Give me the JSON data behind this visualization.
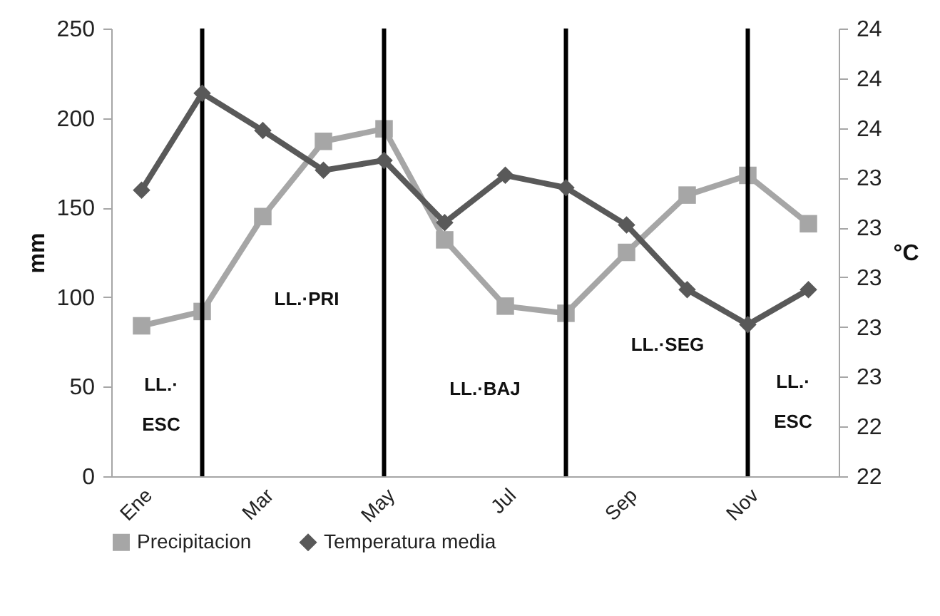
{
  "chart_data": {
    "type": "line",
    "ylabel": "mm",
    "y2label": "°C",
    "categories": [
      "Ene",
      null,
      "Mar",
      null,
      "May",
      null,
      "Jul",
      null,
      "Sep",
      null,
      "Nov",
      null
    ],
    "series": [
      {
        "name": "Precipitacion",
        "color": "#a6a6a6",
        "marker": "square",
        "values": [
          84,
          92,
          145,
          187,
          194,
          132,
          95,
          91,
          125,
          157,
          168,
          141
        ]
      },
      {
        "name": "Temperatura media",
        "color": "#595959",
        "marker": "diamond",
        "axis": "y2",
        "values": [
          23.25,
          23.64,
          23.49,
          23.33,
          23.37,
          23.12,
          23.31,
          23.26,
          23.11,
          22.85,
          22.71,
          22.85
        ]
      }
    ],
    "ylim": [
      0,
      250
    ],
    "yticks": [
      0,
      50,
      100,
      150,
      200,
      250
    ],
    "y2lim": [
      22.1,
      23.9
    ],
    "y2ticks": [
      {
        "value": 22.1,
        "label": "22"
      },
      {
        "value": 22.3,
        "label": "22"
      },
      {
        "value": 22.5,
        "label": "23"
      },
      {
        "value": 22.7,
        "label": "23"
      },
      {
        "value": 22.9,
        "label": "23"
      },
      {
        "value": 23.1,
        "label": "23"
      },
      {
        "value": 23.3,
        "label": "23"
      },
      {
        "value": 23.5,
        "label": "24"
      },
      {
        "value": 23.7,
        "label": "24"
      },
      {
        "value": 23.9,
        "label": "24"
      }
    ],
    "annotations": [
      "LL.·ESC",
      "LL.·PRI",
      "LL.·BAJ",
      "LL.·SEG",
      "LL.·ESC"
    ],
    "line_style": "solid",
    "legend": "bottom"
  }
}
